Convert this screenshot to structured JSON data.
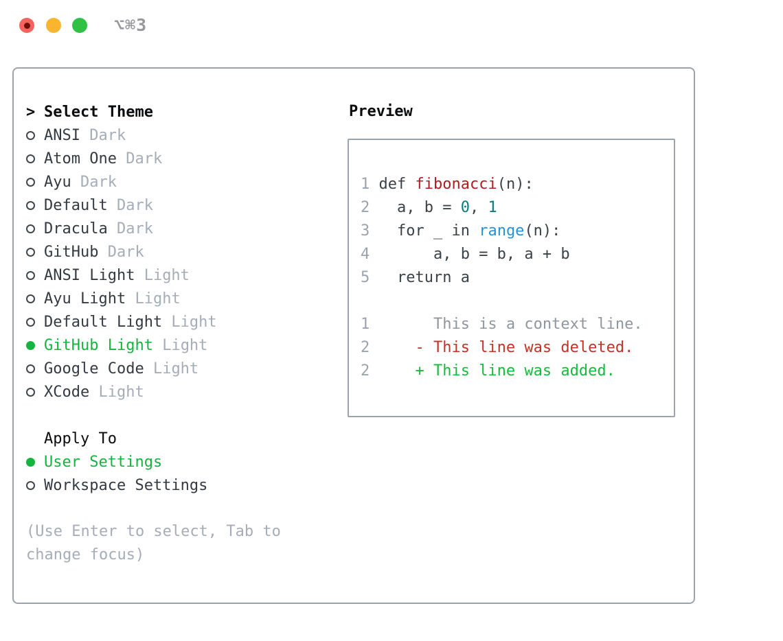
{
  "window": {
    "title": "⌥⌘3",
    "traffic_lights": [
      "close",
      "minimize",
      "zoom"
    ]
  },
  "left": {
    "prompt": ">",
    "title": "Select Theme",
    "themes": [
      {
        "name": "ANSI",
        "variant": "Dark",
        "selected": false
      },
      {
        "name": "Atom One",
        "variant": "Dark",
        "selected": false
      },
      {
        "name": "Ayu",
        "variant": "Dark",
        "selected": false
      },
      {
        "name": "Default",
        "variant": "Dark",
        "selected": false
      },
      {
        "name": "Dracula",
        "variant": "Dark",
        "selected": false
      },
      {
        "name": "GitHub",
        "variant": "Dark",
        "selected": false
      },
      {
        "name": "ANSI Light",
        "variant": "Light",
        "selected": false
      },
      {
        "name": "Ayu Light",
        "variant": "Light",
        "selected": false
      },
      {
        "name": "Default Light",
        "variant": "Light",
        "selected": false
      },
      {
        "name": "GitHub Light",
        "variant": "Light",
        "selected": true
      },
      {
        "name": "Google Code",
        "variant": "Light",
        "selected": false
      },
      {
        "name": "XCode",
        "variant": "Light",
        "selected": false
      }
    ],
    "apply_to": {
      "label": "Apply To",
      "options": [
        {
          "label": "User Settings",
          "selected": true
        },
        {
          "label": "Workspace Settings",
          "selected": false
        }
      ]
    },
    "hint_lines": [
      "(Use Enter to select, Tab to",
      "change focus)"
    ]
  },
  "preview": {
    "title": "Preview",
    "lines": [
      {
        "segments": [
          {
            "text": "1",
            "color": "line_number"
          },
          {
            "text": " def ",
            "color": "code_default"
          },
          {
            "text": "fibonacci",
            "color": "function_red"
          },
          {
            "text": "(n):",
            "color": "code_default"
          }
        ]
      },
      {
        "segments": [
          {
            "text": "2",
            "color": "line_number"
          },
          {
            "text": "   a, b = ",
            "color": "code_default"
          },
          {
            "text": "0",
            "color": "number_teal"
          },
          {
            "text": ", ",
            "color": "code_default"
          },
          {
            "text": "1",
            "color": "number_teal"
          }
        ]
      },
      {
        "segments": [
          {
            "text": "3",
            "color": "line_number"
          },
          {
            "text": "   for _ in ",
            "color": "code_default"
          },
          {
            "text": "range",
            "color": "builtin_blue"
          },
          {
            "text": "(n):",
            "color": "code_default"
          }
        ]
      },
      {
        "segments": [
          {
            "text": "4",
            "color": "line_number"
          },
          {
            "text": "       a, b = b, a + b",
            "color": "code_default"
          }
        ]
      },
      {
        "segments": [
          {
            "text": "5",
            "color": "line_number"
          },
          {
            "text": "   return a",
            "color": "code_default"
          }
        ]
      },
      {
        "segments": []
      },
      {
        "segments": [
          {
            "text": "1",
            "color": "line_number"
          },
          {
            "text": "       This is a context line.",
            "color": "context_gray"
          }
        ]
      },
      {
        "segments": [
          {
            "text": "2",
            "color": "line_number"
          },
          {
            "text": "     - This line was deleted.",
            "color": "deleted_red"
          }
        ]
      },
      {
        "segments": [
          {
            "text": "2",
            "color": "line_number"
          },
          {
            "text": "     + This line was added.",
            "color": "added_green"
          }
        ]
      }
    ]
  },
  "colors": {
    "panel_border": "#9aa3ae",
    "selected_green": "#13b53e",
    "text_dark": "#333a41",
    "text_black": "#0a0c0e",
    "muted": "#a4adb8",
    "line_number": "#9aa4b0",
    "code_default": "#3a4149",
    "function_red": "#b01b20",
    "number_teal": "#0d7b78",
    "builtin_blue": "#2692d4",
    "context_gray": "#8f979e",
    "deleted_red": "#c43125",
    "added_green": "#16bb3c",
    "titlebar_gray": "#96989d",
    "traffic_red": "#f4635d",
    "traffic_red_dot": "#700f0a",
    "traffic_yellow": "#f9b52f",
    "traffic_green": "#2fc144"
  }
}
